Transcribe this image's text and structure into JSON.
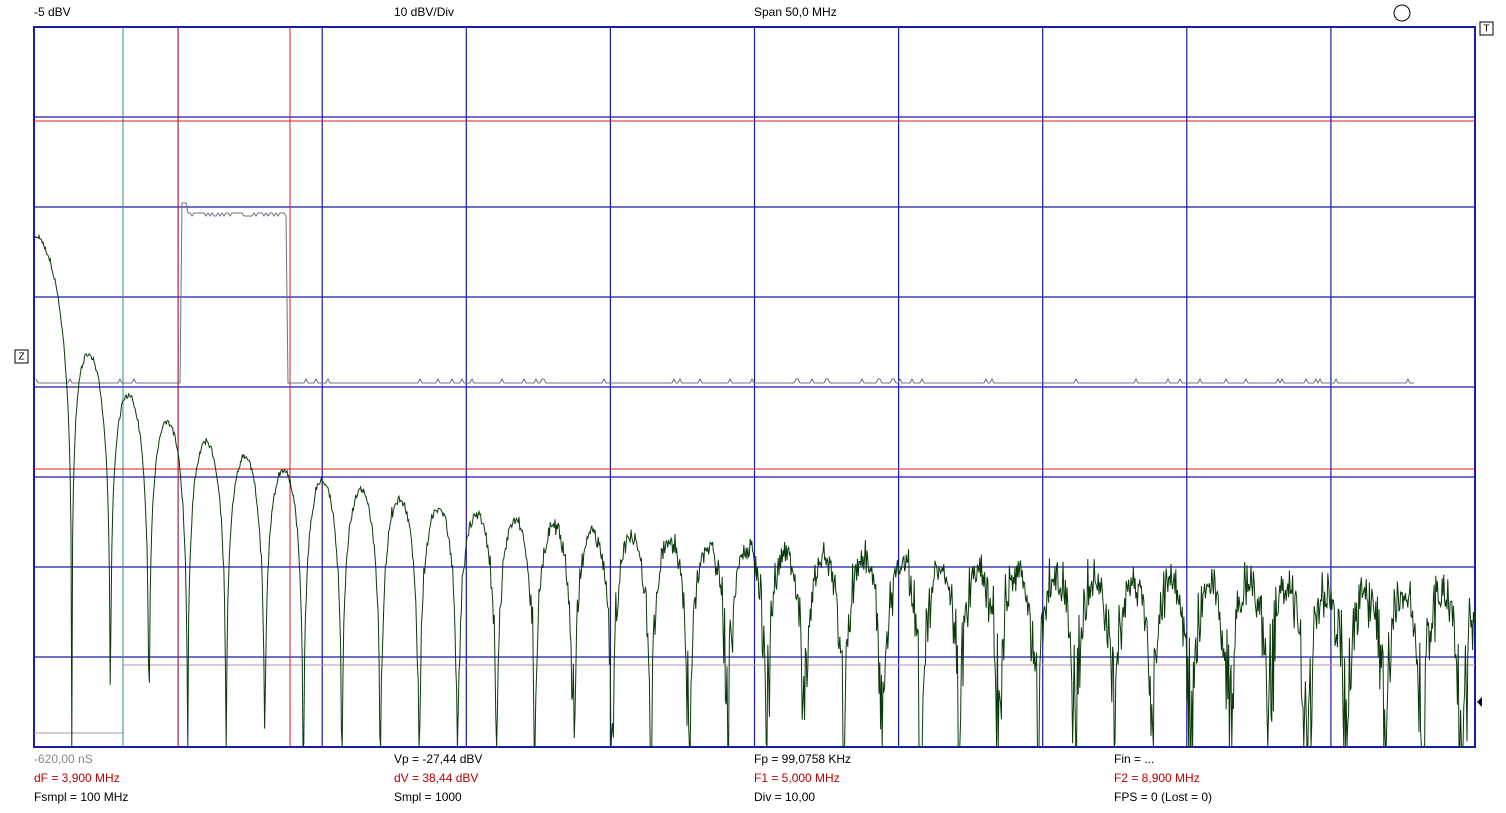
{
  "header": {
    "level": "-5 dBV",
    "scale": "10 dBV/Div",
    "span": "Span 50,0 MHz"
  },
  "markers": {
    "trigger": "T",
    "zero": "Z"
  },
  "readouts": [
    [
      "-620,00 nS",
      "Vp = -27,44 dBV",
      "Fp = 99,0758 KHz",
      "Fin = ..."
    ],
    [
      "dF = 3,900 MHz",
      "dV = 38,44 dBV",
      "F1 = 5,000 MHz",
      "F2 = 8,900 MHz"
    ],
    [
      "Fsmpl = 100 MHz",
      "Smpl = 1000",
      "Div = 10,00",
      "FPS = 0 (Lost = 0)"
    ]
  ]
}
